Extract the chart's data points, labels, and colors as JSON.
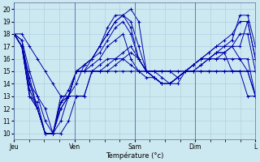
{
  "xlabel": "Température (°c)",
  "background_color": "#cce8f0",
  "grid_color": "#aaccdd",
  "line_color": "#0000aa",
  "ylim": [
    9.5,
    20.5
  ],
  "yticks": [
    10,
    11,
    12,
    13,
    14,
    15,
    16,
    17,
    18,
    19,
    20
  ],
  "day_ticks": [
    0,
    24,
    48,
    72,
    96
  ],
  "day_labels": [
    "Jeu",
    "Ven",
    "Sam",
    "Dim",
    "L"
  ],
  "total_hours": 96,
  "series": [
    [
      18,
      17.5,
      15,
      13,
      11,
      10,
      10,
      11,
      13,
      13,
      15,
      15,
      15,
      15.5,
      16,
      16.5,
      16,
      15,
      14.5,
      14,
      14,
      14,
      15,
      15,
      15.5,
      16,
      16,
      16,
      16,
      16,
      16,
      13
    ],
    [
      18,
      17,
      14.5,
      12,
      10,
      10,
      11,
      13,
      15,
      15,
      15,
      15.5,
      16,
      16,
      16.5,
      17,
      16,
      15,
      15,
      15,
      15,
      14.5,
      15,
      15.5,
      16,
      16,
      16.5,
      16.5,
      17,
      17,
      19,
      16
    ],
    [
      18,
      17,
      14,
      12,
      10,
      10,
      12,
      13,
      15,
      15.5,
      16,
      17,
      18,
      19,
      19.5,
      20,
      19,
      15,
      14.5,
      14,
      14,
      14.5,
      15,
      15.5,
      16,
      16.5,
      17,
      17,
      17.5,
      19.5,
      19.5,
      17
    ],
    [
      18,
      17,
      13.5,
      12,
      10,
      10,
      12,
      13,
      14,
      15.5,
      16,
      17,
      18.5,
      19.5,
      19.5,
      18.5,
      16,
      15,
      14.5,
      14,
      14,
      14.5,
      15,
      15.5,
      16,
      16.5,
      17,
      17.5,
      18,
      19,
      19,
      16
    ],
    [
      18,
      17,
      13,
      12,
      10,
      10,
      12.5,
      13,
      15,
      15.5,
      16,
      17,
      18,
      19,
      19.5,
      19,
      17,
      15,
      14.5,
      14,
      14,
      14.5,
      15,
      15.5,
      16,
      16,
      16.5,
      17,
      17,
      18,
      18,
      15
    ],
    [
      18,
      17,
      13,
      12,
      10,
      10,
      12.5,
      13.5,
      15,
      15,
      16,
      16.5,
      17.5,
      18.5,
      19,
      18,
      16,
      15,
      15,
      14.5,
      14,
      14.5,
      15,
      15.5,
      16,
      16,
      16.5,
      16.5,
      17,
      16,
      15,
      15
    ],
    [
      18,
      17,
      13,
      12.5,
      10,
      10,
      12.5,
      13,
      15,
      15,
      15.5,
      16,
      17,
      17.5,
      18,
      16,
      15,
      14.5,
      14.5,
      14,
      14,
      14.5,
      15,
      15,
      15.5,
      16,
      16,
      16.5,
      15,
      15,
      13,
      13
    ],
    [
      18,
      17.5,
      14,
      13,
      12,
      10,
      13,
      13,
      15,
      15,
      15,
      15,
      15.5,
      16,
      16,
      15.5,
      15,
      15,
      15,
      15,
      15,
      15,
      15,
      15,
      15,
      15,
      15,
      15,
      15,
      15,
      15,
      13
    ],
    [
      18,
      18,
      17,
      16,
      15,
      14,
      13,
      13,
      13,
      13,
      15,
      15,
      15,
      15,
      15,
      15,
      15,
      15,
      15,
      15,
      15,
      15,
      15,
      15,
      15,
      15,
      15,
      15,
      15,
      15,
      15,
      13
    ]
  ]
}
